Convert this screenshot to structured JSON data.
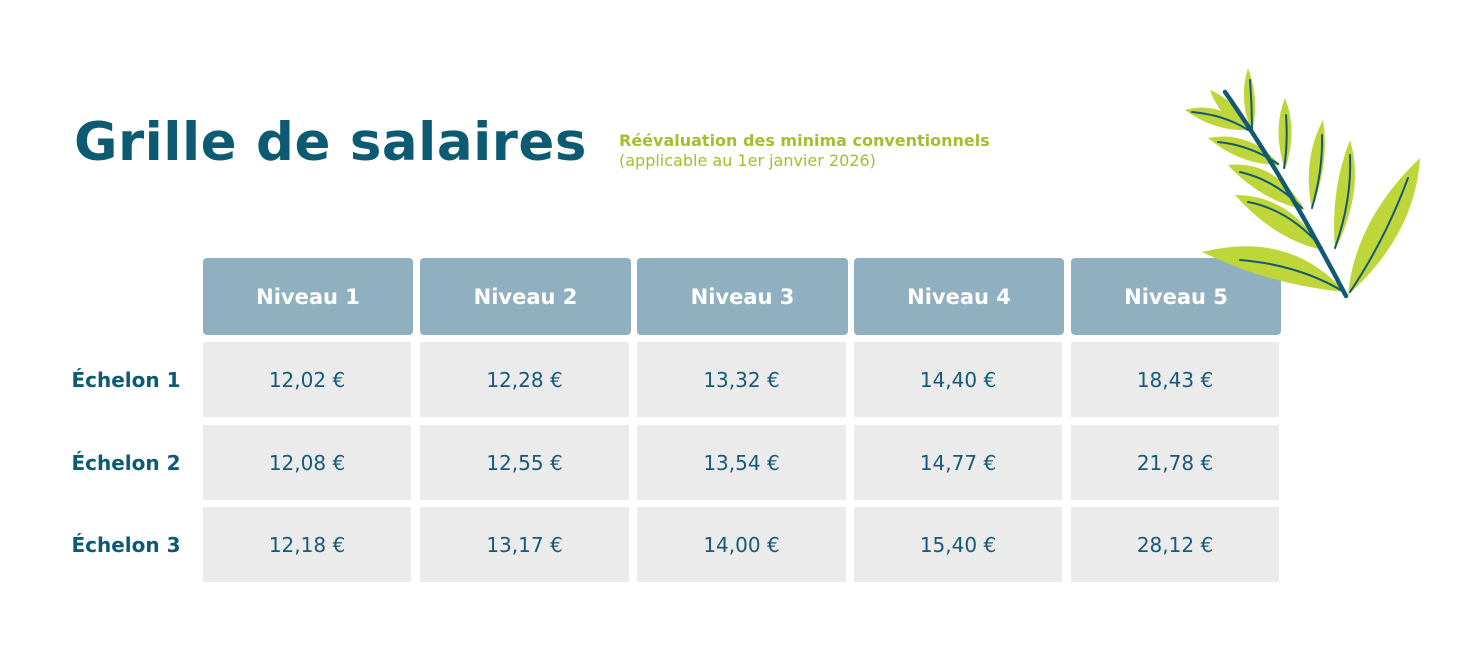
{
  "title": "Grille de salaires",
  "subtitle": {
    "line1": "Réévaluation des minima conventionnels",
    "line2": "(applicable au 1er janvier 2026)"
  },
  "colors": {
    "title": "#0d5a73",
    "accent_green": "#a8bc2c",
    "header_bg": "#90b0c2",
    "cell_bg": "#ebebeb",
    "leaf": "#bfd63a",
    "stem": "#125a73"
  },
  "decoration": "leaf-branch-illustration",
  "table": {
    "columns": [
      "Niveau 1",
      "Niveau 2",
      "Niveau 3",
      "Niveau 4",
      "Niveau 5"
    ],
    "rows": [
      {
        "label": "Échelon 1",
        "values": [
          "12,02 €",
          "12,28 €",
          "13,32 €",
          "14,40 €",
          "18,43 €"
        ]
      },
      {
        "label": "Échelon 2",
        "values": [
          "12,08 €",
          "12,55 €",
          "13,54 €",
          "14,77 €",
          "21,78 €"
        ]
      },
      {
        "label": "Échelon 3",
        "values": [
          "12,18 €",
          "13,17 €",
          "14,00 €",
          "15,40 €",
          "28,12 €"
        ]
      }
    ]
  }
}
